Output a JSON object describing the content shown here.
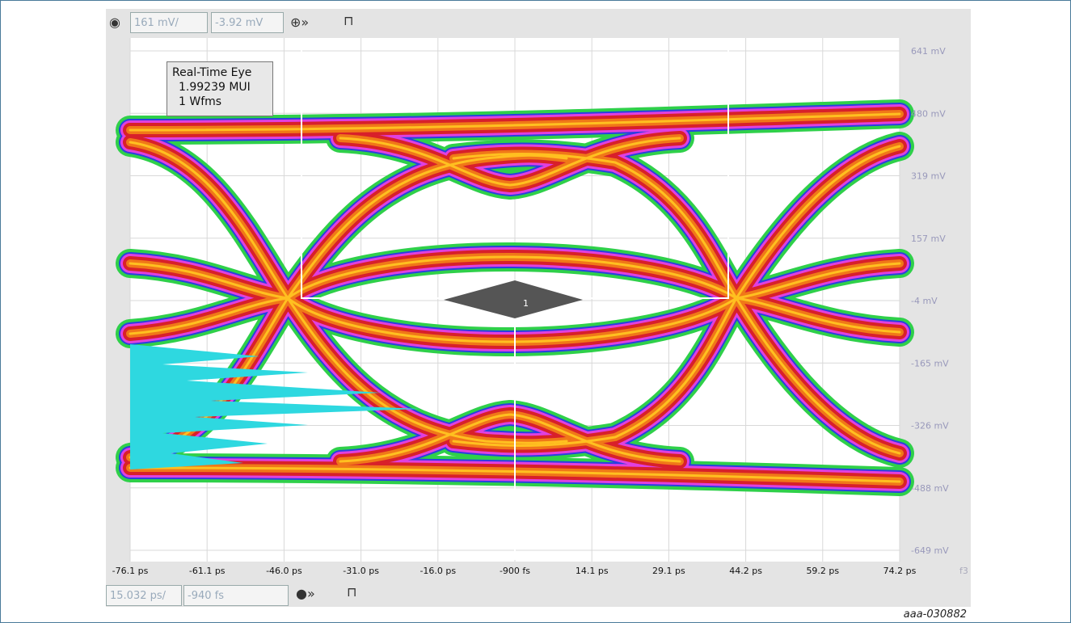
{
  "toolbar_top": {
    "scale": "161 mV/",
    "offset": "-3.92 mV"
  },
  "info_box": {
    "title": "Real-Time Eye",
    "lines": [
      "1.99239 MUI",
      "1 Wfms"
    ]
  },
  "y_axis_labels": [
    "641 mV",
    "480 mV",
    "319 mV",
    "157 mV",
    "-4 mV",
    "-165 mV",
    "-326 mV",
    "-488 mV",
    "-649 mV"
  ],
  "x_axis_labels": [
    "-76.1 ps",
    "-61.1 ps",
    "-46.0 ps",
    "-31.0 ps",
    "-16.0 ps",
    "-900 fs",
    "14.1 ps",
    "29.1 ps",
    "44.2 ps",
    "59.2 ps",
    "74.2 ps"
  ],
  "x_axis_extra": "f3",
  "toolbar_bottom": {
    "scale": "15.032 ps/",
    "offset": "-940 fs"
  },
  "figure_id": "aaa-030882"
}
